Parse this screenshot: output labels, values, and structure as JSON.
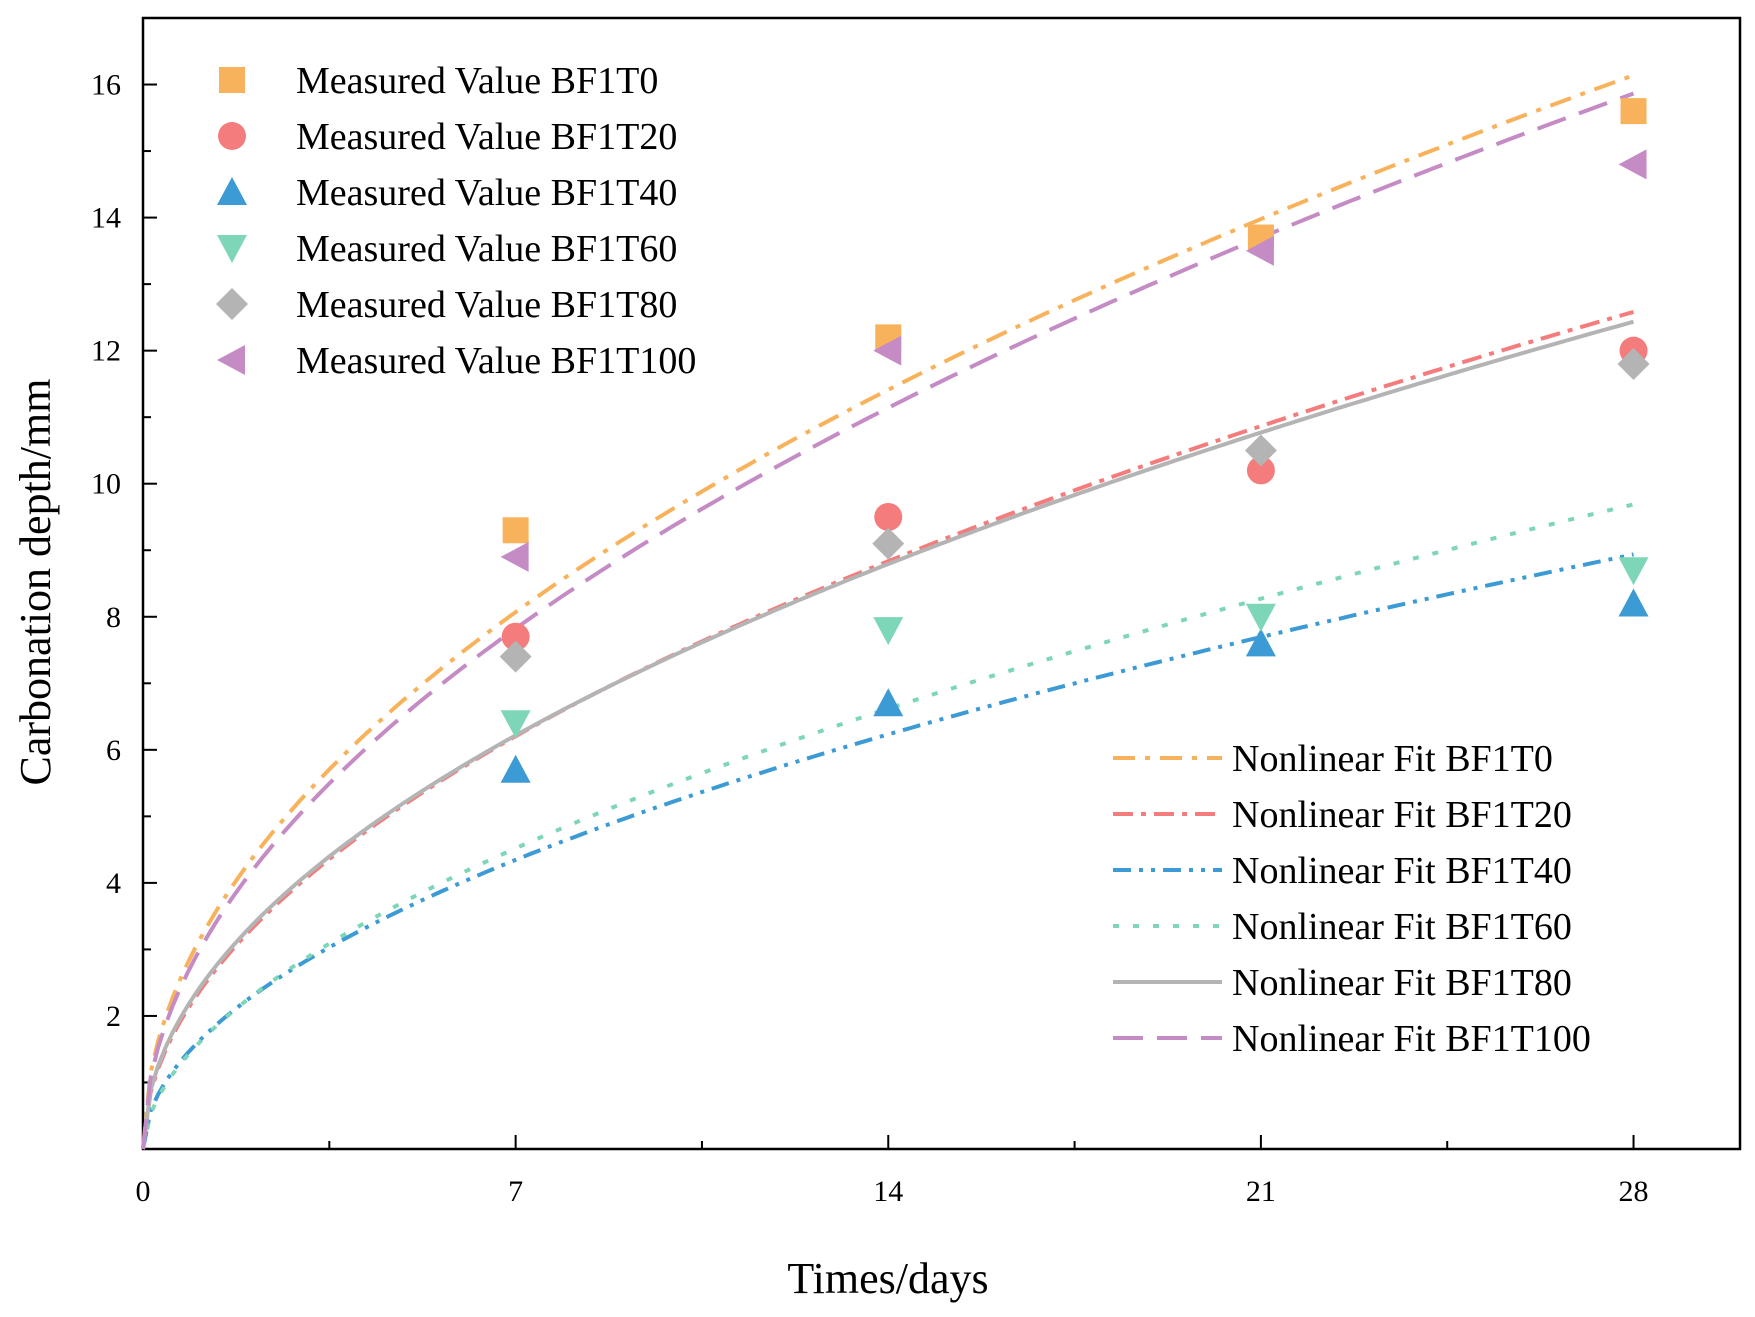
{
  "chart_data": {
    "type": "scatter",
    "title": "",
    "xlabel": "Times/days",
    "ylabel": "Carbonation depth/mm",
    "xlim": [
      0,
      30
    ],
    "ylim": [
      0,
      17
    ],
    "xticks": [
      0,
      7,
      14,
      21,
      28
    ],
    "yticks": [
      2,
      4,
      6,
      8,
      10,
      12,
      14,
      16
    ],
    "grid": false,
    "legend_measured_position": "top-left",
    "legend_fit_position": "bottom-right",
    "measured": [
      {
        "name": "Measured Value BF1T0",
        "color": "#F9B25C",
        "marker": "square",
        "x": [
          7,
          14,
          21,
          28
        ],
        "y": [
          9.3,
          12.2,
          13.7,
          15.6
        ]
      },
      {
        "name": "Measured Value BF1T20",
        "color": "#F47C7C",
        "marker": "circle",
        "x": [
          7,
          14,
          21,
          28
        ],
        "y": [
          7.7,
          9.5,
          10.2,
          12.0
        ]
      },
      {
        "name": "Measured Value BF1T40",
        "color": "#3C9AD4",
        "marker": "triangle-up",
        "x": [
          7,
          14,
          21,
          28
        ],
        "y": [
          5.7,
          6.7,
          7.6,
          8.2
        ]
      },
      {
        "name": "Measured Value BF1T60",
        "color": "#7ED6B8",
        "marker": "triangle-down",
        "x": [
          7,
          14,
          21,
          28
        ],
        "y": [
          6.4,
          7.8,
          8.0,
          8.7
        ]
      },
      {
        "name": "Measured Value BF1T80",
        "color": "#B4B4B4",
        "marker": "diamond",
        "x": [
          7,
          14,
          21,
          28
        ],
        "y": [
          7.4,
          9.1,
          10.5,
          11.8
        ]
      },
      {
        "name": "Measured Value BF1T100",
        "color": "#C48BC4",
        "marker": "triangle-left",
        "x": [
          7,
          14,
          21,
          28
        ],
        "y": [
          8.9,
          12.0,
          13.5,
          14.8
        ]
      }
    ],
    "fits": [
      {
        "name": "Nonlinear Fit BF1T0",
        "color": "#F9B25C",
        "dash": "22 10 5 10",
        "coef": 3.05,
        "exp": 0.5
      },
      {
        "name": "Nonlinear Fit BF1T20",
        "color": "#F47C7C",
        "dash": "20 8 5 8",
        "coef": 2.3,
        "exp": 0.51
      },
      {
        "name": "Nonlinear Fit BF1T40",
        "color": "#3C9AD4",
        "dash": "18 8 4 8 4 8",
        "coef": 1.58,
        "exp": 0.52
      },
      {
        "name": "Nonlinear Fit BF1T60",
        "color": "#7ED6B8",
        "dash": "6 14",
        "coef": 1.55,
        "exp": 0.55
      },
      {
        "name": "Nonlinear Fit BF1T80",
        "color": "#B4B4B4",
        "dash": "",
        "coef": 2.35,
        "exp": 0.5
      },
      {
        "name": "Nonlinear Fit BF1T100",
        "color": "#C48BC4",
        "dash": "30 14",
        "coef": 2.9,
        "exp": 0.51
      }
    ]
  }
}
